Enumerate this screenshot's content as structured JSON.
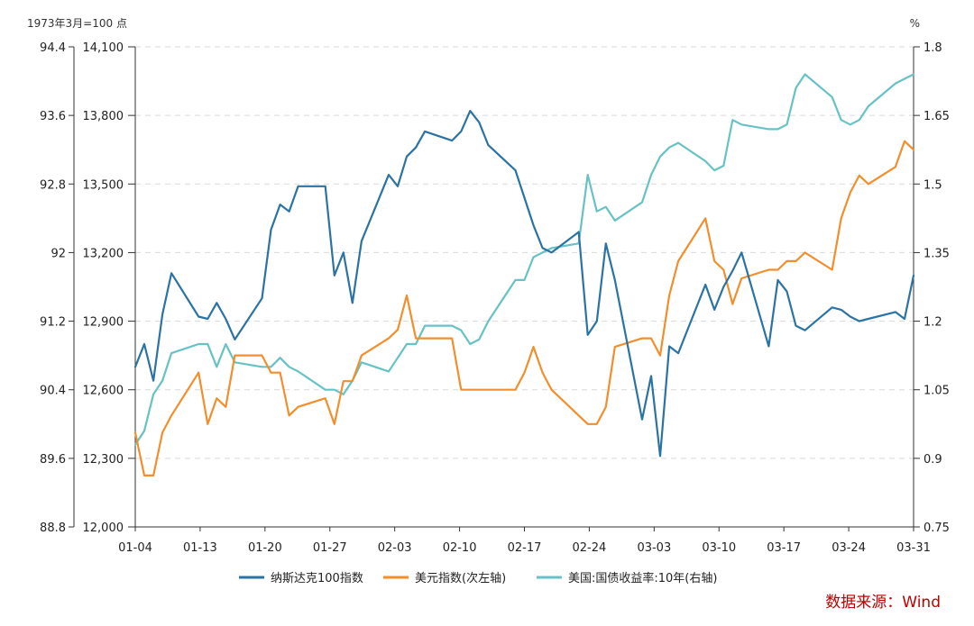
{
  "chart_data": {
    "type": "line",
    "left_unit": "1973年3月=100 点",
    "right_unit": "%",
    "source": "数据来源：Wind",
    "x_ticks": [
      "01-04",
      "01-13",
      "01-20",
      "01-27",
      "02-03",
      "02-10",
      "02-17",
      "02-24",
      "03-03",
      "03-10",
      "03-17",
      "03-24",
      "03-31"
    ],
    "axes": {
      "nasdaq": {
        "ticks": [
          "12,000",
          "12,300",
          "12,600",
          "12,900",
          "13,200",
          "13,500",
          "13,800",
          "14,100"
        ],
        "range": [
          12000,
          14100
        ]
      },
      "dxy": {
        "ticks": [
          "88.8",
          "89.6",
          "90.4",
          "91.2",
          "92",
          "92.8",
          "93.6",
          "94.4"
        ],
        "range": [
          88.8,
          94.4
        ]
      },
      "yield": {
        "ticks": [
          "0.75",
          "0.9",
          "1.05",
          "1.2",
          "1.35",
          "1.5",
          "1.65",
          "1.8"
        ],
        "range": [
          0.75,
          1.8
        ]
      }
    },
    "grid": true,
    "legend_position": "bottom",
    "colors": {
      "nasdaq": "#2a73a3",
      "dxy": "#f28e2b",
      "yield": "#67c2c5"
    },
    "x": [
      0,
      1,
      2,
      3,
      4,
      7,
      8,
      9,
      10,
      11,
      14,
      15,
      16,
      17,
      18,
      21,
      22,
      23,
      24,
      25,
      28,
      29,
      30,
      31,
      32,
      35,
      36,
      37,
      38,
      39,
      42,
      43,
      44,
      45,
      46,
      49,
      50,
      51,
      52,
      53,
      56,
      57,
      58,
      59,
      60,
      63,
      64,
      65,
      66,
      67,
      70,
      71,
      72,
      73,
      74,
      77,
      78,
      79,
      80,
      81,
      84,
      85,
      86
    ],
    "series": [
      {
        "name": "纳斯达克100指数",
        "axis": "nasdaq",
        "values": [
          12700,
          12800,
          12640,
          12930,
          13110,
          12920,
          12910,
          12980,
          12910,
          12820,
          13000,
          13300,
          13410,
          13380,
          13490,
          13490,
          13100,
          13200,
          12980,
          13250,
          13540,
          13490,
          13620,
          13660,
          13730,
          13690,
          13730,
          13820,
          13770,
          13670,
          13560,
          13440,
          13320,
          13220,
          13200,
          13290,
          12840,
          12900,
          13240,
          13080,
          12470,
          12660,
          12310,
          12790,
          12760,
          13060,
          12950,
          13050,
          13120,
          13200,
          12790,
          13080,
          13030,
          12880,
          12860,
          12960,
          12950,
          12920,
          12900,
          12910,
          12940,
          12910,
          13100
        ]
      },
      {
        "name": "美元指数(次左轴)",
        "axis": "dxy",
        "values": [
          89.9,
          89.4,
          89.4,
          89.9,
          90.1,
          90.6,
          90.0,
          90.3,
          90.2,
          90.8,
          90.8,
          90.6,
          90.6,
          90.1,
          90.2,
          90.3,
          90.0,
          90.5,
          90.5,
          90.8,
          91.0,
          91.1,
          91.5,
          91.0,
          91.0,
          91.0,
          90.4,
          90.4,
          90.4,
          90.4,
          90.4,
          90.6,
          90.9,
          90.6,
          90.4,
          90.1,
          90.0,
          90.0,
          90.2,
          90.9,
          91.0,
          91.0,
          90.8,
          91.5,
          91.9,
          92.4,
          91.9,
          91.8,
          91.4,
          91.7,
          91.8,
          91.8,
          91.9,
          91.9,
          92.0,
          91.8,
          92.4,
          92.7,
          92.9,
          92.8,
          93.0,
          93.3,
          93.2
        ]
      },
      {
        "name": "美国:国债收益率:10年(右轴)",
        "axis": "yield",
        "values": [
          0.93,
          0.96,
          1.04,
          1.07,
          1.13,
          1.15,
          1.15,
          1.1,
          1.15,
          1.11,
          1.1,
          1.1,
          1.12,
          1.1,
          1.09,
          1.05,
          1.05,
          1.04,
          1.07,
          1.11,
          1.09,
          1.12,
          1.15,
          1.15,
          1.19,
          1.19,
          1.18,
          1.15,
          1.16,
          1.2,
          1.29,
          1.29,
          1.34,
          1.35,
          1.36,
          1.37,
          1.52,
          1.44,
          1.45,
          1.42,
          1.46,
          1.52,
          1.56,
          1.58,
          1.59,
          1.55,
          1.53,
          1.54,
          1.64,
          1.63,
          1.62,
          1.62,
          1.63,
          1.71,
          1.74,
          1.69,
          1.64,
          1.63,
          1.64,
          1.67,
          1.72,
          1.73,
          1.74
        ]
      }
    ]
  }
}
